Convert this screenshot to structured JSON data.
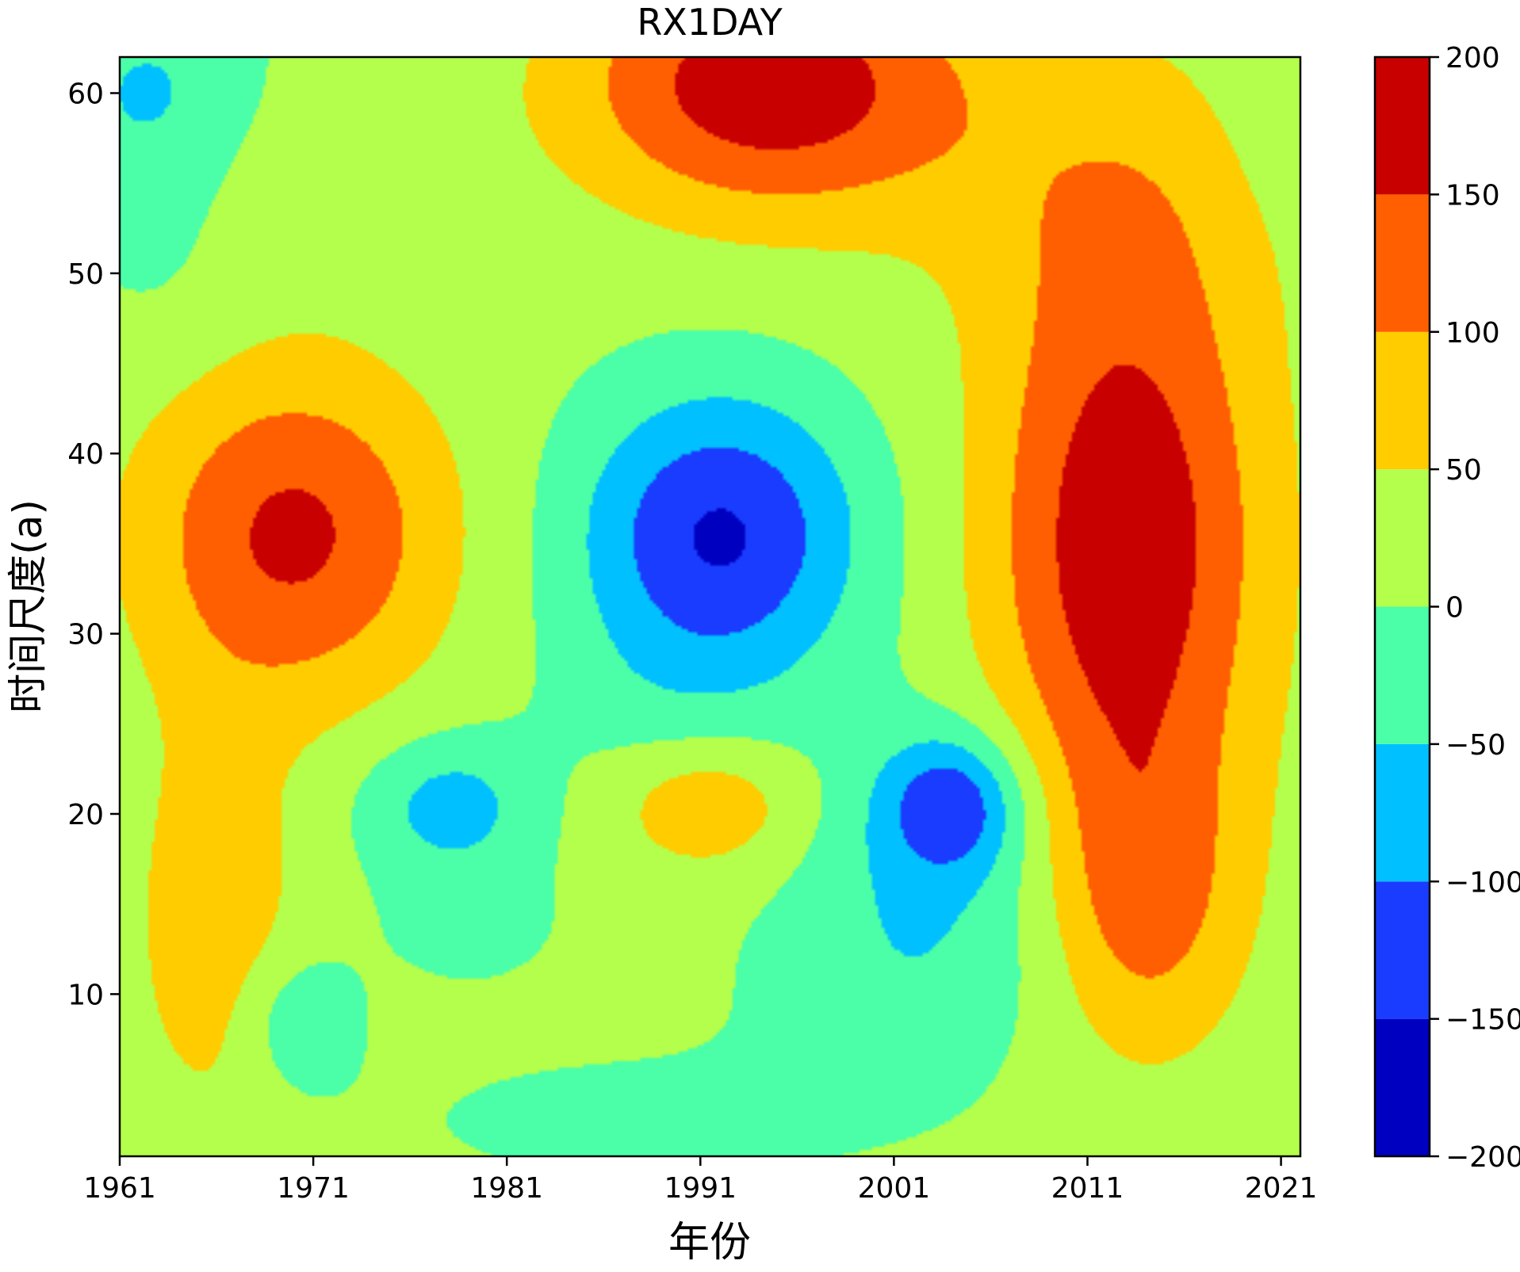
{
  "chart_data": {
    "type": "heatmap",
    "subtype": "filled-contour",
    "title": "RX1DAY",
    "xlabel": "年份",
    "ylabel": "时间尺度(a)",
    "xlim": [
      1961,
      2022
    ],
    "ylim": [
      1,
      62
    ],
    "x_ticks": [
      1961,
      1971,
      1981,
      1991,
      2001,
      2011,
      2021
    ],
    "y_ticks": [
      10,
      20,
      30,
      40,
      50,
      60
    ],
    "colorbar": {
      "levels": [
        -200,
        -150,
        -100,
        -50,
        0,
        50,
        100,
        150,
        200
      ],
      "tick_labels": [
        "−200",
        "−150",
        "−100",
        "−50",
        "0",
        "50",
        "100",
        "150",
        "200"
      ],
      "colors": [
        "#0000c0",
        "#1a3cff",
        "#00c0ff",
        "#4bfea8",
        "#b4ff4b",
        "#ffcc00",
        "#ff5f00",
        "#c80000"
      ]
    },
    "features": [
      {
        "value": 170,
        "x": 1994.5,
        "y": 60.5,
        "sx": 7.0,
        "sy": 5.0
      },
      {
        "value": 175,
        "x": 2013.0,
        "y": 35.0,
        "sx": 5.0,
        "sy": 12.0
      },
      {
        "value": 145,
        "x": 1970.0,
        "y": 35.5,
        "sx": 5.5,
        "sy": 6.5
      },
      {
        "value": 85,
        "x": 2014.0,
        "y": 15.0,
        "sx": 3.5,
        "sy": 6.0
      },
      {
        "value": 70,
        "x": 1966.0,
        "y": 14.0,
        "sx": 3.0,
        "sy": 8.0
      },
      {
        "value": 80,
        "x": 1991.5,
        "y": 20.5,
        "sx": 3.5,
        "sy": 2.6
      },
      {
        "value": 45,
        "x": 2012.0,
        "y": 55.0,
        "sx": 8.0,
        "sy": 6.0
      },
      {
        "value": -170,
        "x": 1992.0,
        "y": 35.5,
        "sx": 5.0,
        "sy": 5.5
      },
      {
        "value": -125,
        "x": 2004.0,
        "y": 20.5,
        "sx": 2.4,
        "sy": 2.6
      },
      {
        "value": -85,
        "x": 1978.0,
        "y": 20.5,
        "sx": 3.2,
        "sy": 2.7
      },
      {
        "value": -65,
        "x": 2003.0,
        "y": 17.0,
        "sx": 5.0,
        "sy": 6.0
      },
      {
        "value": -70,
        "x": 1962.5,
        "y": 60.0,
        "sx": 4.0,
        "sy": 4.5
      },
      {
        "value": -60,
        "x": 1970.0,
        "y": 8.5,
        "sx": 2.2,
        "sy": 2.8
      },
      {
        "value": -25,
        "x": 1979.0,
        "y": 14.0,
        "sx": 4.0,
        "sy": 3.0
      },
      {
        "value": -25,
        "x": 2001.0,
        "y": 10.0,
        "sx": 6.0,
        "sy": 4.0
      },
      {
        "value": -25,
        "x": 1989.0,
        "y": 26.0,
        "sx": 5.0,
        "sy": 4.0
      },
      {
        "value": -20,
        "x": 2021.0,
        "y": 58.0,
        "sx": 3.0,
        "sy": 5.0
      },
      {
        "value": -20,
        "x": 1963.0,
        "y": 50.0,
        "sx": 3.0,
        "sy": 4.0
      },
      {
        "value": -25,
        "x": 1988.0,
        "y": 3.0,
        "sx": 10.0,
        "sy": 3.0
      },
      {
        "value": 25,
        "x": 1972.0,
        "y": 55.0,
        "sx": 5.0,
        "sy": 4.0
      }
    ]
  }
}
